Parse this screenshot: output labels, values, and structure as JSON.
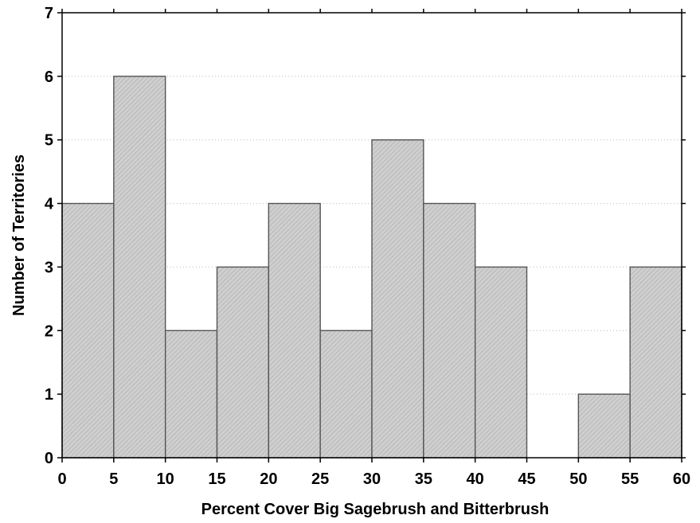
{
  "chart_data": {
    "type": "bar",
    "xlabel": "Percent Cover Big Sagebrush and Bitterbrush",
    "ylabel": "Number of Territories",
    "bins": [
      {
        "from": 0,
        "to": 5,
        "value": 4
      },
      {
        "from": 5,
        "to": 10,
        "value": 6
      },
      {
        "from": 10,
        "to": 15,
        "value": 2
      },
      {
        "from": 15,
        "to": 20,
        "value": 3
      },
      {
        "from": 20,
        "to": 25,
        "value": 4
      },
      {
        "from": 25,
        "to": 30,
        "value": 2
      },
      {
        "from": 30,
        "to": 35,
        "value": 5
      },
      {
        "from": 35,
        "to": 40,
        "value": 4
      },
      {
        "from": 40,
        "to": 45,
        "value": 3
      },
      {
        "from": 45,
        "to": 50,
        "value": 0
      },
      {
        "from": 50,
        "to": 55,
        "value": 1
      },
      {
        "from": 55,
        "to": 60,
        "value": 3
      }
    ],
    "x_ticks": [
      "0",
      "5",
      "10",
      "15",
      "20",
      "25",
      "30",
      "35",
      "40",
      "45",
      "50",
      "55",
      "60"
    ],
    "y_ticks": [
      "0",
      "1",
      "2",
      "3",
      "4",
      "5",
      "6",
      "7"
    ],
    "xlim": [
      0,
      60
    ],
    "ylim": [
      0,
      7
    ],
    "grid": "horizontal dotted",
    "bar_fill": "#c8c8c8",
    "bar_edge": "#555555"
  }
}
